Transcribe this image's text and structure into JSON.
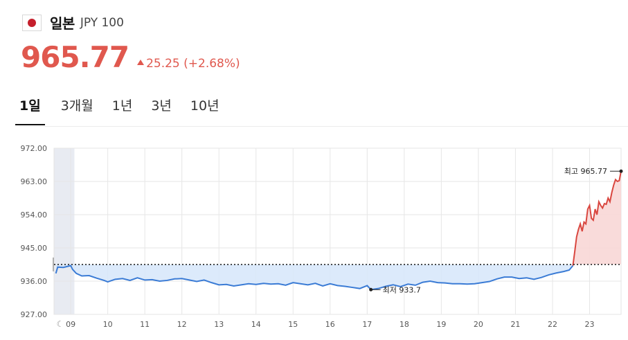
{
  "header": {
    "country": "일본",
    "code": "JPY 100",
    "flag_icon": "japan-flag-icon"
  },
  "quote": {
    "price": "965.77",
    "change": "25.25 (+2.68%)",
    "direction": "up",
    "color_up": "#e0584e",
    "color_down": "#3a7bd5"
  },
  "tabs": [
    {
      "label": "1일",
      "active": true
    },
    {
      "label": "3개월",
      "active": false
    },
    {
      "label": "1년",
      "active": false
    },
    {
      "label": "3년",
      "active": false
    },
    {
      "label": "10년",
      "active": false
    }
  ],
  "chart_data": {
    "type": "area",
    "baseline": 940.52,
    "ylim": [
      927,
      972
    ],
    "yticks": [
      "972.00",
      "963.00",
      "954.00",
      "945.00",
      "936.00",
      "927.00"
    ],
    "yvalues": [
      972,
      963,
      954,
      945,
      936,
      927
    ],
    "xticks": [
      "09",
      "10",
      "11",
      "12",
      "13",
      "14",
      "15",
      "16",
      "17",
      "18",
      "19",
      "20",
      "21",
      "22",
      "23"
    ],
    "x_start": 8.55,
    "x_end": 23.85,
    "night_shade_until": 8.55,
    "grid": true,
    "moon_icon": "moon-icon",
    "high_label": "최고 965.77",
    "low_label": "최저 933.7",
    "high": {
      "x": 23.85,
      "y": 965.77
    },
    "low": {
      "x": 17.1,
      "y": 933.7
    },
    "series": [
      {
        "values": [
          [
            8.6,
            938.1
          ],
          [
            8.65,
            939.8
          ],
          [
            8.8,
            939.7
          ],
          [
            9.0,
            940.2
          ],
          [
            9.05,
            939.2
          ],
          [
            9.15,
            938.1
          ],
          [
            9.3,
            937.4
          ],
          [
            9.5,
            937.5
          ],
          [
            9.7,
            936.8
          ],
          [
            9.9,
            936.2
          ],
          [
            10.0,
            935.8
          ],
          [
            10.2,
            936.5
          ],
          [
            10.4,
            936.7
          ],
          [
            10.6,
            936.2
          ],
          [
            10.8,
            936.9
          ],
          [
            11.0,
            936.3
          ],
          [
            11.2,
            936.4
          ],
          [
            11.4,
            936.0
          ],
          [
            11.6,
            936.2
          ],
          [
            11.8,
            936.6
          ],
          [
            12.0,
            936.7
          ],
          [
            12.2,
            936.3
          ],
          [
            12.4,
            935.9
          ],
          [
            12.6,
            936.3
          ],
          [
            12.8,
            935.6
          ],
          [
            13.0,
            935.0
          ],
          [
            13.2,
            935.1
          ],
          [
            13.4,
            934.7
          ],
          [
            13.6,
            935.0
          ],
          [
            13.8,
            935.3
          ],
          [
            14.0,
            935.1
          ],
          [
            14.2,
            935.4
          ],
          [
            14.4,
            935.2
          ],
          [
            14.6,
            935.3
          ],
          [
            14.8,
            934.9
          ],
          [
            15.0,
            935.6
          ],
          [
            15.2,
            935.3
          ],
          [
            15.4,
            935.0
          ],
          [
            15.6,
            935.4
          ],
          [
            15.8,
            934.7
          ],
          [
            16.0,
            935.3
          ],
          [
            16.2,
            934.8
          ],
          [
            16.4,
            934.6
          ],
          [
            16.6,
            934.3
          ],
          [
            16.8,
            934.0
          ],
          [
            17.0,
            934.8
          ],
          [
            17.1,
            933.7
          ],
          [
            17.3,
            934.0
          ],
          [
            17.5,
            934.6
          ],
          [
            17.7,
            935.0
          ],
          [
            17.9,
            934.5
          ],
          [
            18.1,
            935.2
          ],
          [
            18.3,
            934.9
          ],
          [
            18.5,
            935.7
          ],
          [
            18.7,
            936.0
          ],
          [
            18.9,
            935.6
          ],
          [
            19.1,
            935.5
          ],
          [
            19.3,
            935.3
          ],
          [
            19.5,
            935.3
          ],
          [
            19.7,
            935.2
          ],
          [
            19.9,
            935.3
          ],
          [
            20.1,
            935.6
          ],
          [
            20.3,
            935.9
          ],
          [
            20.5,
            936.6
          ],
          [
            20.7,
            937.1
          ],
          [
            20.9,
            937.1
          ],
          [
            21.1,
            936.7
          ],
          [
            21.3,
            936.9
          ],
          [
            21.5,
            936.5
          ],
          [
            21.7,
            937.0
          ],
          [
            21.9,
            937.7
          ],
          [
            22.1,
            938.2
          ],
          [
            22.3,
            938.6
          ],
          [
            22.45,
            939.0
          ],
          [
            22.55,
            940.2
          ],
          [
            22.6,
            944.0
          ],
          [
            22.65,
            948.0
          ],
          [
            22.7,
            950.0
          ],
          [
            22.75,
            951.5
          ],
          [
            22.8,
            949.5
          ],
          [
            22.85,
            952.0
          ],
          [
            22.9,
            951.5
          ],
          [
            22.95,
            955.5
          ],
          [
            23.0,
            956.5
          ],
          [
            23.05,
            953.0
          ],
          [
            23.1,
            952.5
          ],
          [
            23.15,
            955.5
          ],
          [
            23.2,
            954.0
          ],
          [
            23.25,
            957.5
          ],
          [
            23.3,
            956.5
          ],
          [
            23.35,
            955.8
          ],
          [
            23.4,
            957.0
          ],
          [
            23.45,
            956.8
          ],
          [
            23.5,
            958.5
          ],
          [
            23.55,
            957.5
          ],
          [
            23.6,
            960.0
          ],
          [
            23.65,
            962.0
          ],
          [
            23.7,
            963.5
          ],
          [
            23.75,
            963.0
          ],
          [
            23.8,
            963.2
          ],
          [
            23.85,
            965.77
          ]
        ]
      }
    ]
  }
}
